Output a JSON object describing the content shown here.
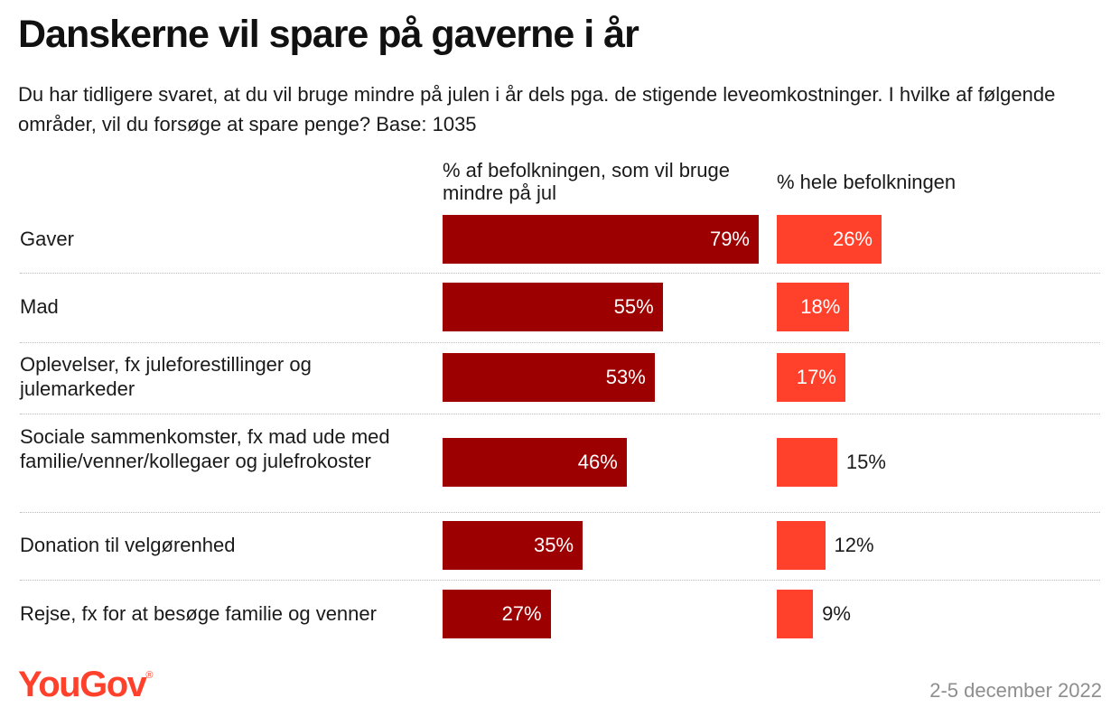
{
  "title": "Danskerne vil spare på gaverne i år",
  "subtitle": "Du har tidligere svaret, at du vil bruge mindre på julen i år dels pga. de stigende leveomkostninger. I hvilke af følgende områder, vil du forsøge at spare penge? Base: 1035",
  "footer": {
    "logo": "YouGov",
    "date": "2-5 december 2022"
  },
  "colors": {
    "series1": "#9c0000",
    "series2": "#ff412c",
    "brand": "#ff412c"
  },
  "chart_data": {
    "type": "bar",
    "orientation": "horizontal",
    "categories": [
      "Gaver",
      "Mad",
      "Oplevelser, fx juleforestillinger og julemarkeder",
      "Sociale sammenkomster, fx mad ude med familie/venner/kollegaer og julefrokoster",
      "Donation til velgørenhed",
      "Rejse, fx for at besøge familie og venner"
    ],
    "series": [
      {
        "name": "% af befolkningen, som vil bruge mindre på jul",
        "values": [
          79,
          55,
          53,
          46,
          35,
          27
        ]
      },
      {
        "name": "% hele befolkningen",
        "values": [
          26,
          18,
          17,
          15,
          12,
          9
        ]
      }
    ],
    "value_suffix": "%",
    "data_labels": true,
    "grid": false,
    "legend": "column headers above bars"
  }
}
